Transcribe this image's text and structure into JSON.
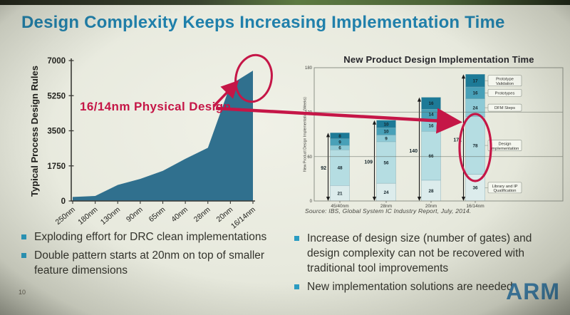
{
  "slide": {
    "title": "Design Complexity Keeps Increasing Implementation Time",
    "annotation": "16/14nm Physical Design",
    "page_number": "10",
    "logo": "ARM",
    "bullets_left": [
      "Exploding effort for DRC clean implementations",
      "Double pattern starts at 20nm on top of smaller feature dimensions"
    ],
    "bullets_right": [
      "Increase of design size (number of gates) and design complexity can not be recovered with traditional tool improvements",
      "New implementation solutions are needed"
    ],
    "colors": {
      "title": "#2080ab",
      "accent_red": "#c51647",
      "area_fill": "#30708e",
      "arm_blue": "#3c7ca6",
      "text": "#33332c",
      "bullet": "#2b9cc2"
    }
  },
  "chart_data": [
    {
      "type": "area",
      "ylabel": "Typical Process Design Rules",
      "categories": [
        "250nm",
        "180nm",
        "130nm",
        "90nm",
        "65nm",
        "40nm",
        "28nm",
        "20nm",
        "16/14nm"
      ],
      "values": [
        200,
        250,
        800,
        1100,
        1500,
        2100,
        2650,
        5800,
        6500
      ],
      "yticks": [
        0,
        1750,
        3500,
        5250,
        7000
      ],
      "ylim": [
        0,
        7000
      ],
      "color": "#30708e",
      "grid": false,
      "annotation": "16/14nm Physical Design"
    },
    {
      "type": "bar",
      "stacked": true,
      "title": "New Product Design Implementation Time",
      "ylabel": "New Product Design Implementation (Weeks)",
      "categories": [
        "45/40nm",
        "28nm",
        "20nm",
        "16/14nm"
      ],
      "series": [
        {
          "name": "Library and IP Qualification",
          "values": [
            21,
            24,
            28,
            36
          ],
          "color": "#dcecec"
        },
        {
          "name": "Design Implementation",
          "values": [
            48,
            56,
            66,
            78
          ],
          "color": "#b5dde2"
        },
        {
          "name": "DFM Steps",
          "values": [
            6,
            9,
            16,
            24
          ],
          "color": "#8ecad6"
        },
        {
          "name": "Prototypes",
          "values": [
            9,
            10,
            14,
            16
          ],
          "color": "#48a0b8"
        },
        {
          "name": "Prototype Validation",
          "values": [
            8,
            10,
            16,
            17
          ],
          "color": "#1d7a97"
        }
      ],
      "totals": [
        92,
        109,
        140,
        171
      ],
      "yticks": [
        0,
        60,
        120,
        180
      ],
      "ylim": [
        0,
        180
      ],
      "grid": true,
      "legend_position": "right-callouts",
      "source": "Source: IBS, Global System IC Industry Report, July, 2014."
    }
  ]
}
